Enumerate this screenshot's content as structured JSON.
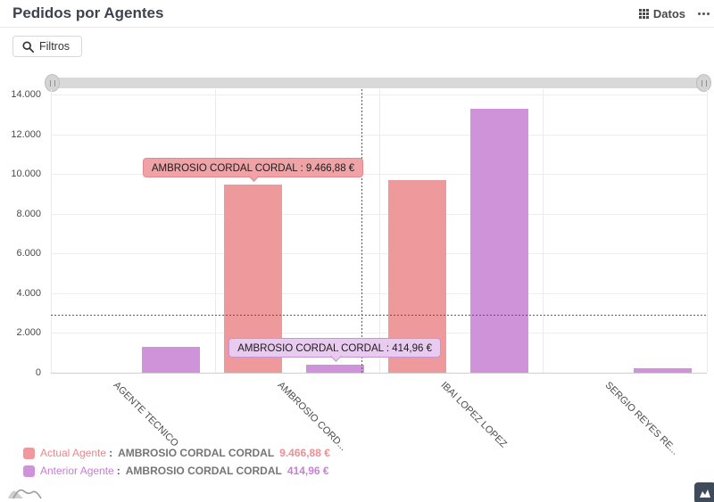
{
  "header": {
    "title": "Pedidos por Agentes",
    "datos_label": "Datos"
  },
  "toolbar": {
    "filters_label": "Filtros"
  },
  "chart_data": {
    "type": "bar",
    "title": "Pedidos por Agentes",
    "categories": [
      "AGENTE TECNICO",
      "AMBROSIO CORD...",
      "IBAI LOPEZ LOPEZ",
      "SERGIO REYES RE..."
    ],
    "series": [
      {
        "name": "Actual Agente",
        "color": "#ee999c",
        "values": [
          0,
          9466.88,
          9700,
          0
        ]
      },
      {
        "name": "Anterior Agente",
        "color": "#ce93d8",
        "values": [
          1300,
          414.96,
          13290,
          220
        ]
      }
    ],
    "xlabel": "",
    "ylabel": "",
    "ylim": [
      0,
      14000
    ],
    "y_ticks": [
      "14.000",
      "12.000",
      "10.000",
      "8.000",
      "6.000",
      "4.000",
      "2.000",
      "0"
    ],
    "grid": true,
    "legend_position": "bottom-left",
    "cursor": {
      "x_frac": 0.473,
      "y_value": 2900
    },
    "tooltips": [
      {
        "series_index": 0,
        "category_index": 1,
        "label": "AMBROSIO CORDAL CORDAL : 9.466,88 €",
        "fill": "#f0a3a6",
        "border": "#e5888d"
      },
      {
        "series_index": 1,
        "category_index": 1,
        "label": "AMBROSIO CORDAL CORDAL : 414,96 €",
        "fill": "#e8cbee",
        "border": "#c795d3"
      }
    ]
  },
  "legend": {
    "separator": ":",
    "items": [
      {
        "name": "Actual Agente",
        "agent": "AMBROSIO CORDAL CORDAL",
        "value": "9.466,88 €",
        "swatch_color": "#ee999c",
        "name_color": "#e8878c",
        "value_color": "#ef8e93"
      },
      {
        "name": "Anterior Agente",
        "agent": "AMBROSIO CORDAL CORDAL",
        "value": "414,96 €",
        "swatch_color": "#ce93d8",
        "name_color": "#c47fd0",
        "value_color": "#c583d1"
      }
    ]
  }
}
